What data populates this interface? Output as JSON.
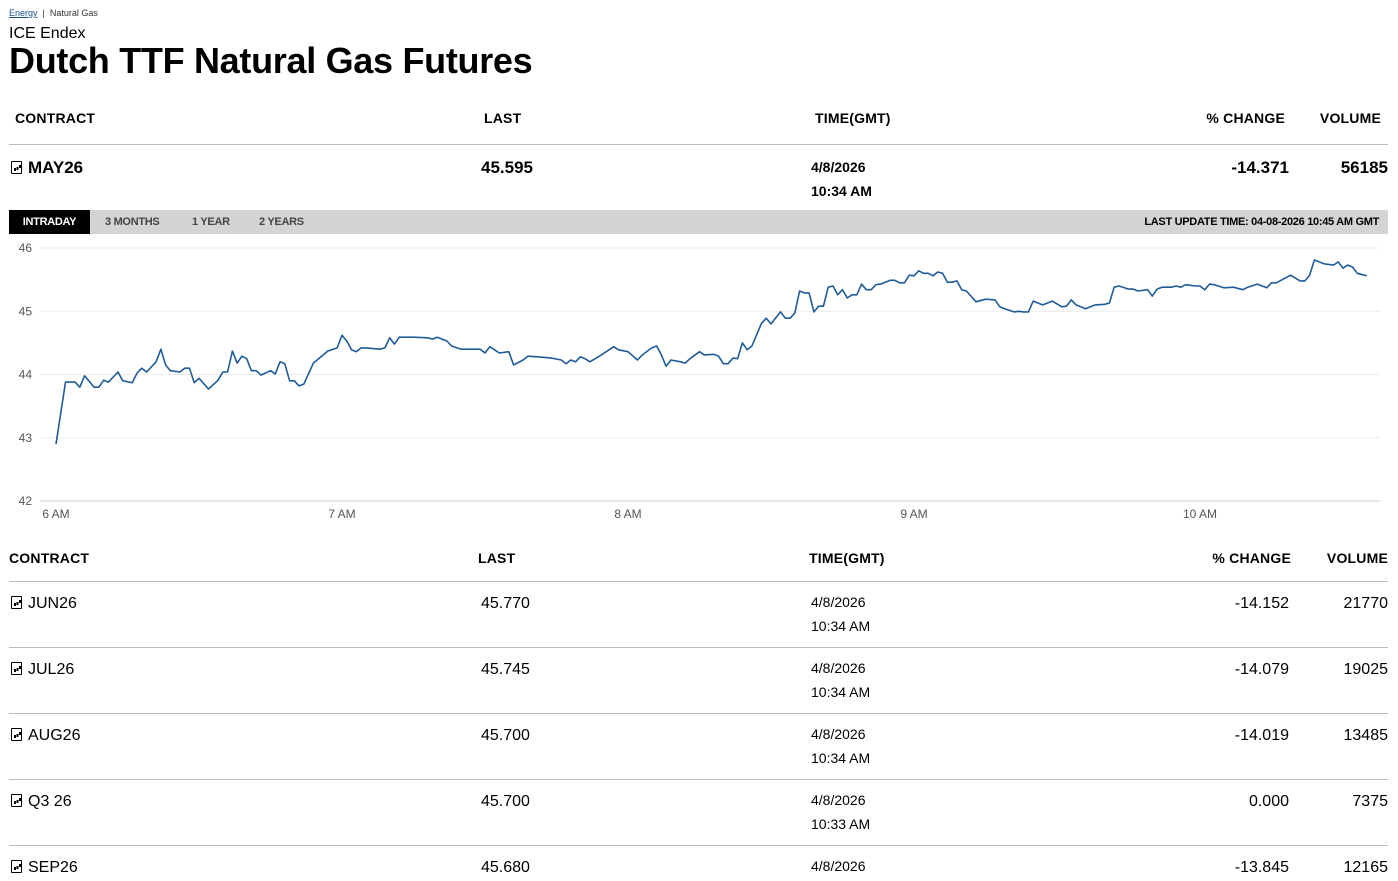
{
  "breadcrumb": {
    "items": [
      "Energy",
      "Natural Gas"
    ],
    "sep": "|"
  },
  "header": {
    "provider": "ICE Endex",
    "title": "Dutch TTF Natural Gas Futures"
  },
  "columns": {
    "contract": "CONTRACT",
    "last": "LAST",
    "time": "TIME(GMT)",
    "change": "% CHANGE",
    "volume": "VOLUME"
  },
  "front": {
    "contract": "MAY26",
    "last": "45.595",
    "date": "4/8/2026",
    "time": "10:34 AM",
    "change": "-14.371",
    "volume": "56185"
  },
  "tabs": [
    "INTRADAY",
    "3 MONTHS",
    "1 YEAR",
    "2 YEARS"
  ],
  "active_tab": "INTRADAY",
  "last_update": "LAST UPDATE TIME: 04-08-2026 10:45 AM GMT",
  "rows": [
    {
      "contract": "JUN26",
      "last": "45.770",
      "date": "4/8/2026",
      "time": "10:34 AM",
      "change": "-14.152",
      "volume": "21770"
    },
    {
      "contract": "JUL26",
      "last": "45.745",
      "date": "4/8/2026",
      "time": "10:34 AM",
      "change": "-14.079",
      "volume": "19025"
    },
    {
      "contract": "AUG26",
      "last": "45.700",
      "date": "4/8/2026",
      "time": "10:34 AM",
      "change": "-14.019",
      "volume": "13485"
    },
    {
      "contract": "Q3 26",
      "last": "45.700",
      "date": "4/8/2026",
      "time": "10:33 AM",
      "change": "0.000",
      "volume": "7375"
    },
    {
      "contract": "SEP26",
      "last": "45.680",
      "date": "4/8/2026",
      "time": "",
      "change": "-13.845",
      "volume": "12165"
    }
  ],
  "chart_data": {
    "type": "line",
    "line_color": "#1f5c99",
    "grid": true,
    "ylim": [
      42,
      46
    ],
    "yticks": [
      "42",
      "43",
      "44",
      "45",
      "46"
    ],
    "xticks": [
      "6 AM",
      "7 AM",
      "8 AM",
      "9 AM",
      "10 AM"
    ],
    "points": [
      [
        "6:00",
        42.9
      ],
      [
        "6:02",
        43.88
      ],
      [
        "6:04",
        43.88
      ],
      [
        "6:05",
        43.8
      ],
      [
        "6:06",
        43.98
      ],
      [
        "6:08",
        43.8
      ],
      [
        "6:09",
        43.8
      ],
      [
        "6:10",
        43.91
      ],
      [
        "6:11",
        43.88
      ],
      [
        "6:13",
        44.04
      ],
      [
        "6:14",
        43.9
      ],
      [
        "6:16",
        43.87
      ],
      [
        "6:17",
        44.02
      ],
      [
        "6:18",
        44.1
      ],
      [
        "6:19",
        44.04
      ],
      [
        "6:21",
        44.2
      ],
      [
        "6:22",
        44.4
      ],
      [
        "6:23",
        44.15
      ],
      [
        "6:24",
        44.06
      ],
      [
        "6:26",
        44.04
      ],
      [
        "6:27",
        44.1
      ],
      [
        "6:28",
        44.1
      ],
      [
        "6:29",
        43.87
      ],
      [
        "6:30",
        43.94
      ],
      [
        "6:32",
        43.77
      ],
      [
        "6:34",
        43.91
      ],
      [
        "6:35",
        44.04
      ],
      [
        "6:36",
        44.04
      ],
      [
        "6:37",
        44.37
      ],
      [
        "6:38",
        44.18
      ],
      [
        "6:39",
        44.29
      ],
      [
        "6:40",
        44.25
      ],
      [
        "6:41",
        44.06
      ],
      [
        "6:42",
        44.06
      ],
      [
        "6:43",
        43.99
      ],
      [
        "6:45",
        44.06
      ],
      [
        "6:46",
        44.01
      ],
      [
        "6:47",
        44.2
      ],
      [
        "6:48",
        44.17
      ],
      [
        "6:49",
        43.9
      ],
      [
        "6:50",
        43.9
      ],
      [
        "6:51",
        43.82
      ],
      [
        "6:52",
        43.85
      ],
      [
        "6:54",
        44.18
      ],
      [
        "6:57",
        44.37
      ],
      [
        "6:59",
        44.42
      ],
      [
        "7:00",
        44.62
      ],
      [
        "7:01",
        44.53
      ],
      [
        "7:02",
        44.39
      ],
      [
        "7:03",
        44.36
      ],
      [
        "7:04",
        44.42
      ],
      [
        "7:05",
        44.42
      ],
      [
        "7:08",
        44.4
      ],
      [
        "7:09",
        44.42
      ],
      [
        "7:10",
        44.58
      ],
      [
        "7:11",
        44.48
      ],
      [
        "7:12",
        44.59
      ],
      [
        "7:15",
        44.59
      ],
      [
        "7:18",
        44.58
      ],
      [
        "7:19",
        44.56
      ],
      [
        "7:20",
        44.59
      ],
      [
        "7:22",
        44.53
      ],
      [
        "7:23",
        44.45
      ],
      [
        "7:25",
        44.4
      ],
      [
        "7:29",
        44.4
      ],
      [
        "7:30",
        44.34
      ],
      [
        "7:31",
        44.44
      ],
      [
        "7:32",
        44.39
      ],
      [
        "7:33",
        44.34
      ],
      [
        "7:35",
        44.36
      ],
      [
        "7:36",
        44.15
      ],
      [
        "7:38",
        44.23
      ],
      [
        "7:39",
        44.29
      ],
      [
        "7:41",
        44.28
      ],
      [
        "7:44",
        44.26
      ],
      [
        "7:46",
        44.23
      ],
      [
        "7:47",
        44.17
      ],
      [
        "7:48",
        44.23
      ],
      [
        "7:49",
        44.2
      ],
      [
        "7:50",
        44.28
      ],
      [
        "7:51",
        44.25
      ],
      [
        "7:52",
        44.2
      ],
      [
        "7:54",
        44.29
      ],
      [
        "7:57",
        44.44
      ],
      [
        "7:58",
        44.39
      ],
      [
        "8:00",
        44.36
      ],
      [
        "8:02",
        44.23
      ],
      [
        "8:03",
        44.31
      ],
      [
        "8:05",
        44.42
      ],
      [
        "8:06",
        44.45
      ],
      [
        "8:07",
        44.31
      ],
      [
        "8:08",
        44.13
      ],
      [
        "8:09",
        44.23
      ],
      [
        "8:11",
        44.2
      ],
      [
        "8:12",
        44.18
      ],
      [
        "8:13",
        44.25
      ],
      [
        "8:15",
        44.36
      ],
      [
        "8:16",
        44.31
      ],
      [
        "8:18",
        44.32
      ],
      [
        "8:19",
        44.29
      ],
      [
        "8:20",
        44.17
      ],
      [
        "8:21",
        44.17
      ],
      [
        "8:22",
        44.26
      ],
      [
        "8:23",
        44.25
      ],
      [
        "8:24",
        44.5
      ],
      [
        "8:25",
        44.39
      ],
      [
        "8:26",
        44.45
      ],
      [
        "8:28",
        44.81
      ],
      [
        "8:29",
        44.89
      ],
      [
        "8:30",
        44.8
      ],
      [
        "8:32",
        44.99
      ],
      [
        "8:33",
        44.89
      ],
      [
        "8:34",
        44.89
      ],
      [
        "8:35",
        44.97
      ],
      [
        "8:36",
        45.32
      ],
      [
        "8:37",
        45.29
      ],
      [
        "8:38",
        45.29
      ],
      [
        "8:39",
        44.99
      ],
      [
        "8:40",
        45.08
      ],
      [
        "8:41",
        45.08
      ],
      [
        "8:42",
        45.38
      ],
      [
        "8:43",
        45.4
      ],
      [
        "8:44",
        45.26
      ],
      [
        "8:45",
        45.34
      ],
      [
        "8:46",
        45.21
      ],
      [
        "8:47",
        45.26
      ],
      [
        "8:48",
        45.26
      ],
      [
        "8:49",
        45.43
      ],
      [
        "8:50",
        45.34
      ],
      [
        "8:51",
        45.34
      ],
      [
        "8:52",
        45.42
      ],
      [
        "8:53",
        45.43
      ],
      [
        "8:54",
        45.46
      ],
      [
        "8:55",
        45.49
      ],
      [
        "8:56",
        45.49
      ],
      [
        "8:57",
        45.45
      ],
      [
        "8:58",
        45.45
      ],
      [
        "8:59",
        45.57
      ],
      [
        "9:00",
        45.56
      ],
      [
        "9:01",
        45.64
      ],
      [
        "9:02",
        45.6
      ],
      [
        "9:03",
        45.6
      ],
      [
        "9:04",
        45.56
      ],
      [
        "9:05",
        45.62
      ],
      [
        "9:06",
        45.6
      ],
      [
        "9:07",
        45.46
      ],
      [
        "9:08",
        45.46
      ],
      [
        "9:09",
        45.48
      ],
      [
        "9:10",
        45.34
      ],
      [
        "9:11",
        45.32
      ],
      [
        "9:13",
        45.15
      ],
      [
        "9:15",
        45.19
      ],
      [
        "9:17",
        45.18
      ],
      [
        "9:18",
        45.07
      ],
      [
        "9:19",
        45.04
      ],
      [
        "9:21",
        44.99
      ],
      [
        "9:22",
        45.0
      ],
      [
        "9:23",
        44.99
      ],
      [
        "9:24",
        44.99
      ],
      [
        "9:25",
        45.16
      ],
      [
        "9:27",
        45.1
      ],
      [
        "9:29",
        45.16
      ],
      [
        "9:31",
        45.07
      ],
      [
        "9:32",
        45.08
      ],
      [
        "9:33",
        45.18
      ],
      [
        "9:34",
        45.1
      ],
      [
        "9:36",
        45.04
      ],
      [
        "9:38",
        45.1
      ],
      [
        "9:40",
        45.11
      ],
      [
        "9:41",
        45.13
      ],
      [
        "9:42",
        45.38
      ],
      [
        "9:43",
        45.4
      ],
      [
        "9:45",
        45.35
      ],
      [
        "9:46",
        45.35
      ],
      [
        "9:47",
        45.32
      ],
      [
        "9:49",
        45.34
      ],
      [
        "9:50",
        45.24
      ],
      [
        "9:51",
        45.35
      ],
      [
        "9:52",
        45.38
      ],
      [
        "9:54",
        45.38
      ],
      [
        "9:55",
        45.4
      ],
      [
        "9:56",
        45.38
      ],
      [
        "9:57",
        45.42
      ],
      [
        "9:59",
        45.4
      ],
      [
        "10:00",
        45.4
      ],
      [
        "10:01",
        45.34
      ],
      [
        "10:02",
        45.43
      ],
      [
        "10:03",
        45.42
      ],
      [
        "10:05",
        45.37
      ],
      [
        "10:07",
        45.38
      ],
      [
        "10:09",
        45.34
      ],
      [
        "10:10",
        45.38
      ],
      [
        "10:12",
        45.43
      ],
      [
        "10:14",
        45.37
      ],
      [
        "10:15",
        45.45
      ],
      [
        "10:16",
        45.45
      ],
      [
        "10:19",
        45.57
      ],
      [
        "10:21",
        45.48
      ],
      [
        "10:22",
        45.48
      ],
      [
        "10:23",
        45.57
      ],
      [
        "10:24",
        45.81
      ],
      [
        "10:26",
        45.75
      ],
      [
        "10:28",
        45.73
      ],
      [
        "10:29",
        45.78
      ],
      [
        "10:30",
        45.68
      ],
      [
        "10:31",
        45.73
      ],
      [
        "10:32",
        45.7
      ],
      [
        "10:33",
        45.6
      ],
      [
        "10:35",
        45.56
      ]
    ]
  }
}
